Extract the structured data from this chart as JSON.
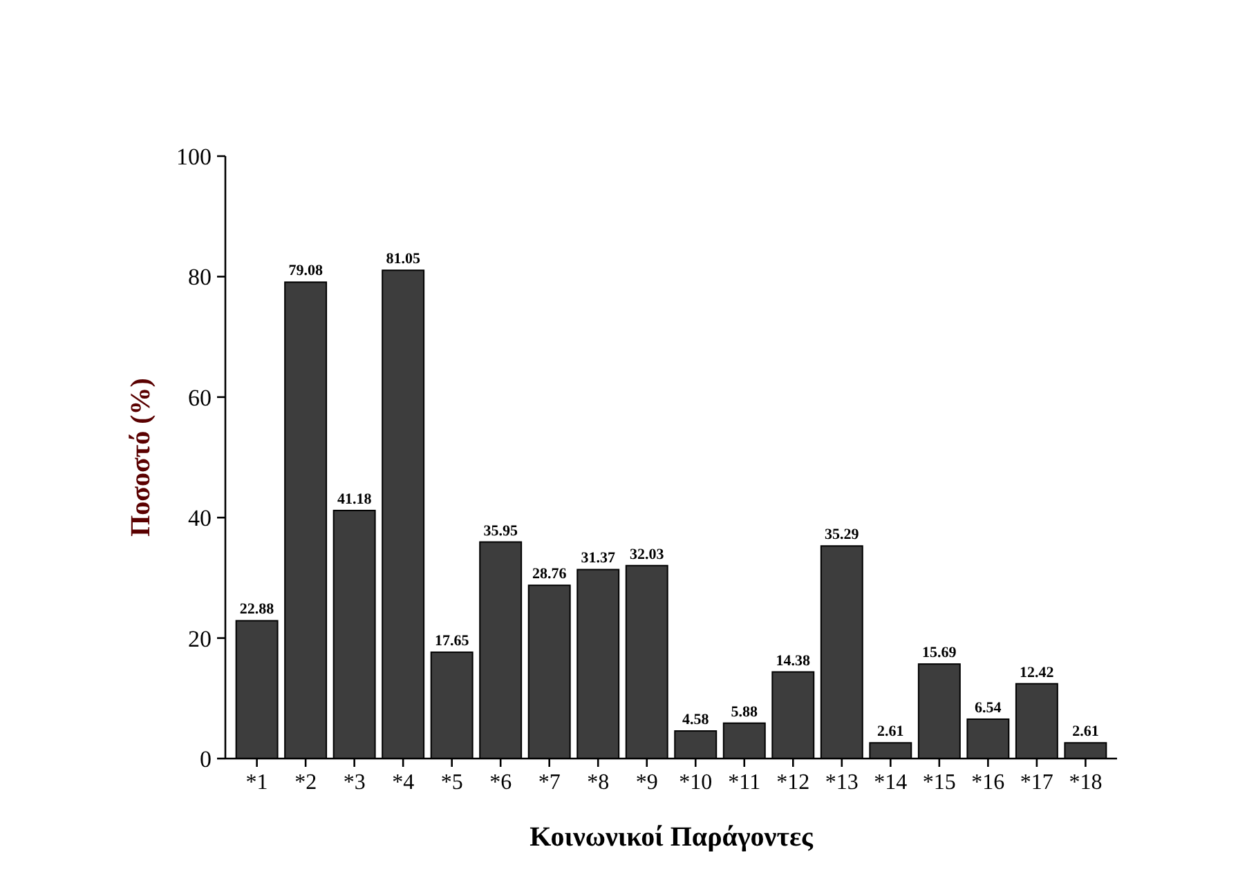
{
  "chart_data": {
    "type": "bar",
    "xlabel": "Κοινωνικοί Παράγοντες",
    "ylabel": "Ποσοστό (%)",
    "categories": [
      "*1",
      "*2",
      "*3",
      "*4",
      "*5",
      "*6",
      "*7",
      "*8",
      "*9",
      "*10",
      "*11",
      "*12",
      "*13",
      "*14",
      "*15",
      "*16",
      "*17",
      "*18"
    ],
    "values": [
      22.88,
      79.08,
      41.18,
      81.05,
      17.65,
      35.95,
      28.76,
      31.37,
      32.03,
      4.58,
      5.88,
      14.38,
      35.29,
      2.61,
      15.69,
      6.54,
      12.42,
      2.61
    ],
    "color": "#3d3d3d",
    "ylim": [
      0,
      100
    ],
    "yticks": [
      0,
      20,
      40,
      60,
      80,
      100
    ],
    "data_labels": true,
    "grid": false
  }
}
